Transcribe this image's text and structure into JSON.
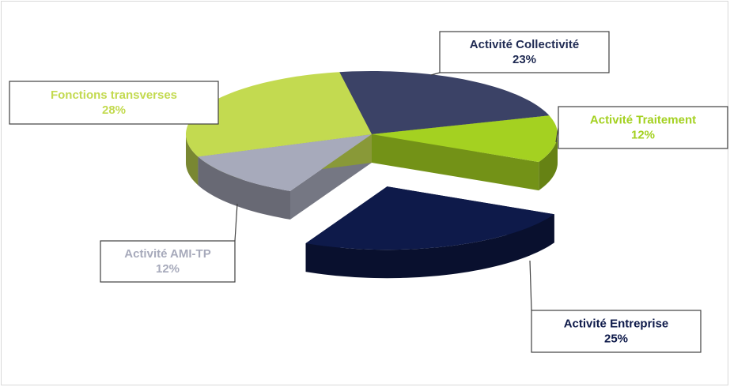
{
  "chart_data": {
    "type": "pie",
    "categories": [
      "Activité Collectivité",
      "Activité Traitement",
      "Activité Entreprise",
      "Activité AMI-TP",
      "Fonctions transverses"
    ],
    "values": [
      23,
      12,
      25,
      12,
      28
    ],
    "value_labels": [
      "23%",
      "12%",
      "25%",
      "12%",
      "28%"
    ],
    "colors": [
      "#3b4266",
      "#a4d121",
      "#0e1a4a",
      "#a7aabb",
      "#c3da50"
    ],
    "exploded": [
      false,
      false,
      true,
      false,
      false
    ]
  }
}
